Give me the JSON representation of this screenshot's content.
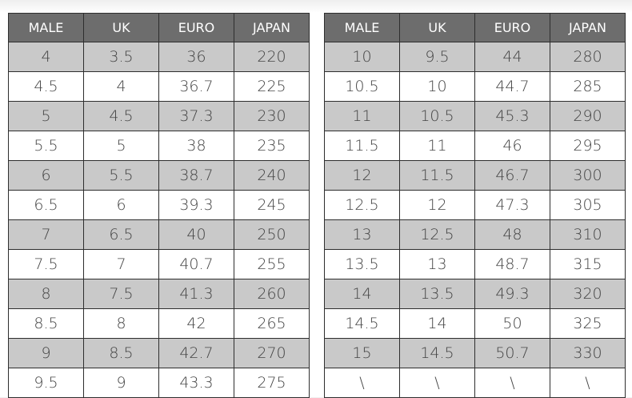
{
  "tables": [
    {
      "header": [
        "MALE",
        "UK",
        "EURO",
        "JAPAN"
      ],
      "rows": [
        [
          "4",
          "3.5",
          "36",
          "220"
        ],
        [
          "4.5",
          "4",
          "36.7",
          "225"
        ],
        [
          "5",
          "4.5",
          "37.3",
          "230"
        ],
        [
          "5.5",
          "5",
          "38",
          "235"
        ],
        [
          "6",
          "5.5",
          "38.7",
          "240"
        ],
        [
          "6.5",
          "6",
          "39.3",
          "245"
        ],
        [
          "7",
          "6.5",
          "40",
          "250"
        ],
        [
          "7.5",
          "7",
          "40.7",
          "255"
        ],
        [
          "8",
          "7.5",
          "41.3",
          "260"
        ],
        [
          "8.5",
          "8",
          "42",
          "265"
        ],
        [
          "9",
          "8.5",
          "42.7",
          "270"
        ],
        [
          "9.5",
          "9",
          "43.3",
          "275"
        ]
      ]
    },
    {
      "header": [
        "MALE",
        "UK",
        "EURO",
        "JAPAN"
      ],
      "rows": [
        [
          "10",
          "9.5",
          "44",
          "280"
        ],
        [
          "10.5",
          "10",
          "44.7",
          "285"
        ],
        [
          "11",
          "10.5",
          "45.3",
          "290"
        ],
        [
          "11.5",
          "11",
          "46",
          "295"
        ],
        [
          "12",
          "11.5",
          "46.7",
          "300"
        ],
        [
          "12.5",
          "12",
          "47.3",
          "305"
        ],
        [
          "13",
          "12.5",
          "48",
          "310"
        ],
        [
          "13.5",
          "13",
          "48.7",
          "315"
        ],
        [
          "14",
          "13.5",
          "49.3",
          "320"
        ],
        [
          "14.5",
          "14",
          "50",
          "325"
        ],
        [
          "15",
          "14.5",
          "50.7",
          "330"
        ],
        [
          "\\",
          "\\",
          "\\",
          "\\"
        ]
      ]
    }
  ]
}
